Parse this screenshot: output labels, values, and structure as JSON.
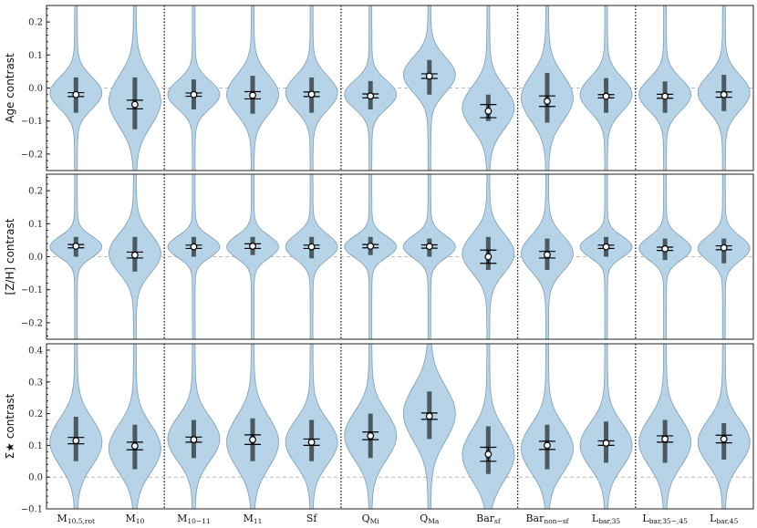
{
  "chart_data": [
    {
      "type": "violin",
      "ylabel": "Age contrast",
      "ylim": [
        -0.25,
        0.25
      ],
      "yticks": [
        -0.2,
        -0.1,
        0.0,
        0.1,
        0.2
      ],
      "ytick_labels": [
        "−0.2",
        "−0.1",
        "0.0",
        "0.1",
        "0.2"
      ],
      "means": [
        -0.02,
        -0.05,
        -0.02,
        -0.022,
        -0.019,
        -0.024,
        0.036,
        -0.07,
        -0.04,
        -0.025,
        -0.025,
        -0.02
      ],
      "mean_err": [
        0.006,
        0.013,
        0.005,
        0.011,
        0.007,
        0.006,
        0.007,
        0.02,
        0.016,
        0.005,
        0.006,
        0.008
      ],
      "iqr_bar": [
        [
          -0.075,
          0.032
        ],
        [
          -0.125,
          0.032
        ],
        [
          -0.065,
          0.026
        ],
        [
          -0.078,
          0.037
        ],
        [
          -0.075,
          0.032
        ],
        [
          -0.065,
          0.021
        ],
        [
          -0.02,
          0.085
        ],
        [
          -0.1,
          -0.02
        ],
        [
          -0.105,
          0.046
        ],
        [
          -0.075,
          0.03
        ],
        [
          -0.075,
          0.02
        ],
        [
          -0.07,
          0.04
        ]
      ],
      "dist_center": [
        -0.015,
        -0.04,
        -0.02,
        -0.02,
        -0.015,
        -0.02,
        0.04,
        -0.06,
        -0.03,
        -0.02,
        -0.02,
        -0.015
      ],
      "dist_sd": [
        0.045,
        0.07,
        0.04,
        0.055,
        0.048,
        0.04,
        0.05,
        0.06,
        0.065,
        0.048,
        0.045,
        0.05
      ]
    },
    {
      "type": "violin",
      "ylabel": "[Z/H] contrast",
      "ylim": [
        -0.25,
        0.25
      ],
      "yticks": [
        -0.2,
        -0.1,
        0.0,
        0.1,
        0.2
      ],
      "ytick_labels": [
        "−0.2",
        "−0.1",
        "0.0",
        "0.1",
        "0.2"
      ],
      "means": [
        0.032,
        0.005,
        0.03,
        0.032,
        0.03,
        0.032,
        0.031,
        0.0,
        0.006,
        0.03,
        0.024,
        0.027
      ],
      "mean_err": [
        0.005,
        0.009,
        0.005,
        0.007,
        0.005,
        0.005,
        0.005,
        0.02,
        0.01,
        0.005,
        0.005,
        0.006
      ],
      "iqr_bar": [
        [
          0.0,
          0.06
        ],
        [
          -0.045,
          0.06
        ],
        [
          0.0,
          0.06
        ],
        [
          0.005,
          0.06
        ],
        [
          -0.005,
          0.06
        ],
        [
          0.005,
          0.06
        ],
        [
          0.0,
          0.055
        ],
        [
          -0.04,
          0.06
        ],
        [
          -0.04,
          0.055
        ],
        [
          0.0,
          0.06
        ],
        [
          -0.01,
          0.055
        ],
        [
          -0.02,
          0.055
        ]
      ],
      "dist_center": [
        0.03,
        0.01,
        0.03,
        0.03,
        0.03,
        0.03,
        0.03,
        0.01,
        0.01,
        0.03,
        0.025,
        0.025
      ],
      "dist_sd": [
        0.03,
        0.055,
        0.03,
        0.032,
        0.035,
        0.03,
        0.032,
        0.055,
        0.05,
        0.03,
        0.033,
        0.035
      ]
    },
    {
      "type": "violin",
      "ylabel": "Σ★ contrast",
      "ylim": [
        -0.1,
        0.42
      ],
      "yticks": [
        -0.1,
        0.0,
        0.1,
        0.2,
        0.3,
        0.4
      ],
      "ytick_labels": [
        "−0.1",
        "0.0",
        "0.1",
        "0.2",
        "0.3",
        "0.4"
      ],
      "means": [
        0.115,
        0.098,
        0.118,
        0.118,
        0.11,
        0.13,
        0.192,
        0.072,
        0.1,
        0.107,
        0.12,
        0.12
      ],
      "mean_err": [
        0.01,
        0.012,
        0.008,
        0.015,
        0.01,
        0.012,
        0.01,
        0.022,
        0.013,
        0.007,
        0.01,
        0.012
      ],
      "iqr_bar": [
        [
          0.05,
          0.19
        ],
        [
          0.025,
          0.165
        ],
        [
          0.06,
          0.18
        ],
        [
          0.05,
          0.185
        ],
        [
          0.05,
          0.18
        ],
        [
          0.06,
          0.2
        ],
        [
          0.12,
          0.27
        ],
        [
          0.01,
          0.16
        ],
        [
          0.025,
          0.165
        ],
        [
          0.045,
          0.175
        ],
        [
          0.045,
          0.18
        ],
        [
          0.055,
          0.17
        ]
      ],
      "dist_center": [
        0.11,
        0.09,
        0.12,
        0.11,
        0.11,
        0.13,
        0.2,
        0.07,
        0.09,
        0.1,
        0.11,
        0.11
      ],
      "dist_sd": [
        0.07,
        0.07,
        0.065,
        0.075,
        0.065,
        0.07,
        0.08,
        0.075,
        0.07,
        0.065,
        0.07,
        0.065
      ]
    }
  ],
  "categories": [
    {
      "main": "M",
      "sub": "10.5,rot"
    },
    {
      "main": "M",
      "sub": "10"
    },
    {
      "main": "M",
      "sub": "10−11"
    },
    {
      "main": "M",
      "sub": "11"
    },
    {
      "main": "Sf",
      "sub": ""
    },
    {
      "main": "Q",
      "sub": "Mi"
    },
    {
      "main": "Q",
      "sub": "Ma"
    },
    {
      "main": "Bar",
      "sub": "sf"
    },
    {
      "main": "Bar",
      "sub": "non−sf"
    },
    {
      "main": "L",
      "sub": "bar,35"
    },
    {
      "main": "L",
      "sub": "bar,35−,45"
    },
    {
      "main": "L",
      "sub": "bar,45"
    }
  ],
  "group_separators_after": [
    1,
    4,
    7,
    9
  ],
  "colors": {
    "violin_fill": "#b6d3e8",
    "violin_edge": "#7f9db3",
    "bar": "#4a5a63",
    "zero_line": "#bbbbbb"
  }
}
